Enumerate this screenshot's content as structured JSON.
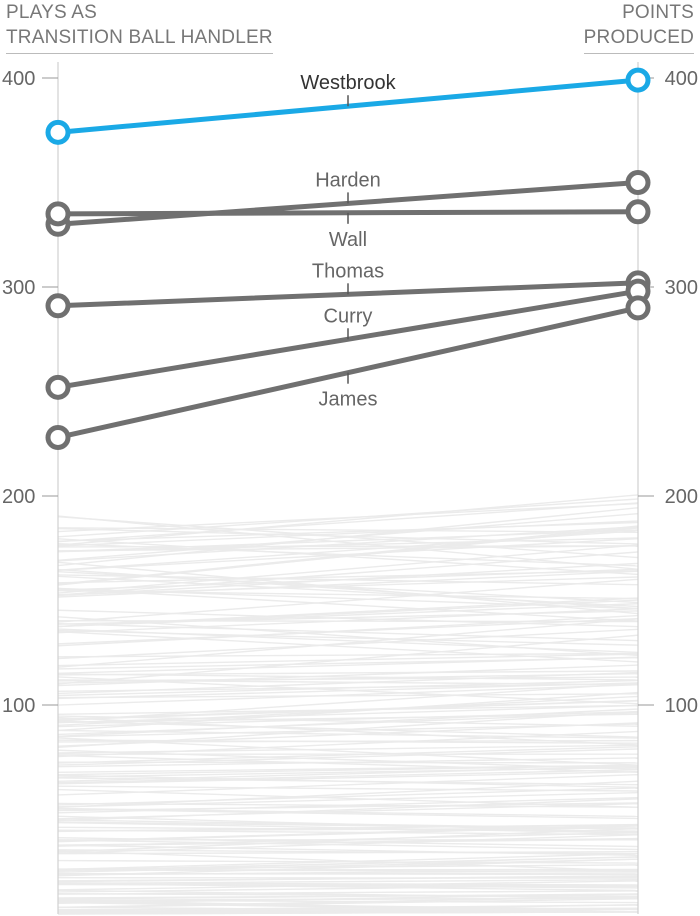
{
  "header": {
    "left_line1": "PLAYS AS",
    "left_line2": "TRANSITION BALL HANDLER",
    "right_line1": "POINTS",
    "right_line2": "PRODUCED"
  },
  "colors": {
    "highlight": "#1AA9E6",
    "named": "#707070",
    "background_lines": "#ebebeb",
    "axis": "#d0d0d0"
  },
  "chart_data": {
    "type": "line",
    "subtype": "slopegraph",
    "title": "",
    "left_axis_label": "PLAYS AS TRANSITION BALL HANDLER",
    "right_axis_label": "POINTS PRODUCED",
    "ylim": [
      0,
      425
    ],
    "yticks": [
      100,
      200,
      300,
      400
    ],
    "ytick_labels": [
      "100",
      "200",
      "300",
      "400"
    ],
    "series": [
      {
        "name": "Westbrook",
        "left": 374,
        "right": 399,
        "highlight": true,
        "label_pos": "above"
      },
      {
        "name": "Harden",
        "left": 330,
        "right": 350,
        "highlight": false,
        "label_pos": "above"
      },
      {
        "name": "Wall",
        "left": 335,
        "right": 336,
        "highlight": false,
        "label_pos": "below"
      },
      {
        "name": "Thomas",
        "left": 291,
        "right": 302,
        "highlight": false,
        "label_pos": "above"
      },
      {
        "name": "Curry",
        "left": 252,
        "right": 298,
        "highlight": false,
        "label_pos": "above"
      },
      {
        "name": "James",
        "left": 228,
        "right": 290,
        "highlight": false,
        "label_pos": "below"
      }
    ],
    "background_series_count": 200,
    "background_series_range": [
      0,
      200
    ]
  }
}
